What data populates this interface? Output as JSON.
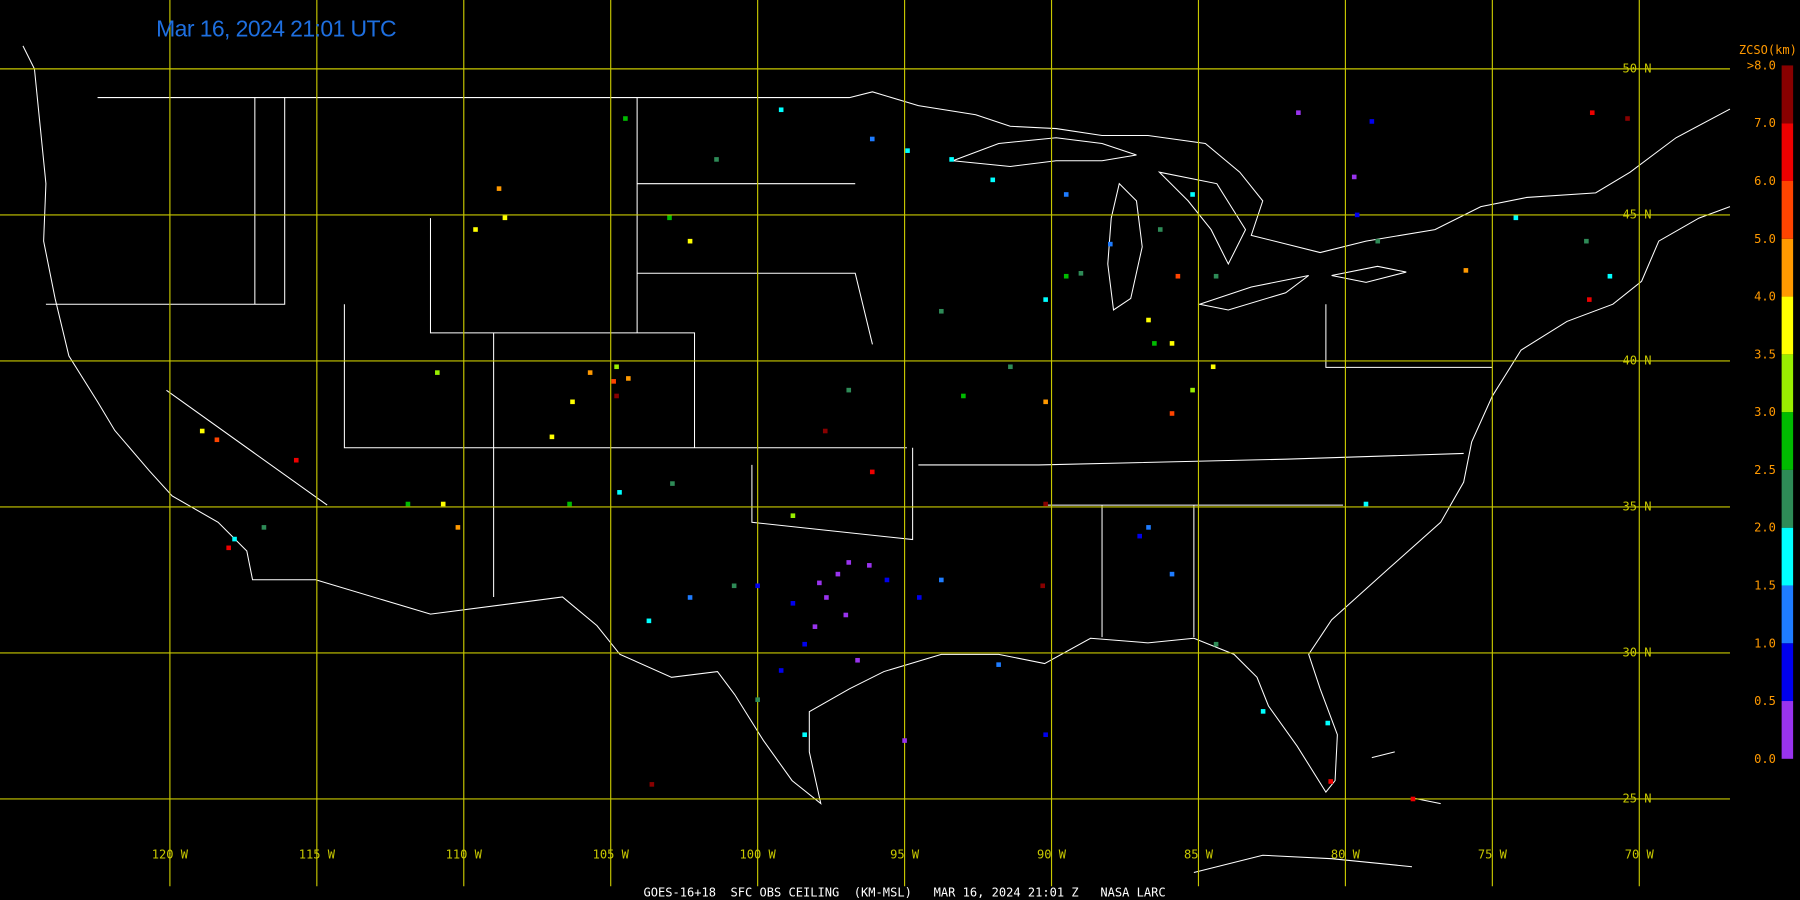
{
  "title": "Mar 16, 2024 21:01 UTC",
  "caption": "GOES-16+18  SFC OBS CEILING  (KM-MSL)   MAR 16, 2024 21:01 Z   NASA LARC",
  "grid_color": "#c8c800",
  "lat_ticks": [
    {
      "value": 50,
      "label": "50 N"
    },
    {
      "value": 45,
      "label": "45 N"
    },
    {
      "value": 40,
      "label": "40 N"
    },
    {
      "value": 35,
      "label": "35 N"
    },
    {
      "value": 30,
      "label": "30 N"
    },
    {
      "value": 25,
      "label": "25 N"
    }
  ],
  "lon_ticks": [
    {
      "value": -120,
      "label": "120 W"
    },
    {
      "value": -115,
      "label": "115 W"
    },
    {
      "value": -110,
      "label": "110 W"
    },
    {
      "value": -105,
      "label": "105 W"
    },
    {
      "value": -100,
      "label": "100 W"
    },
    {
      "value": -95,
      "label": "95 W"
    },
    {
      "value": -90,
      "label": "90 W"
    },
    {
      "value": -85,
      "label": "85 W"
    },
    {
      "value": -80,
      "label": "80 W"
    },
    {
      "value": -75,
      "label": "75 W"
    },
    {
      "value": -70,
      "label": "70 W"
    }
  ],
  "colorbar": {
    "title": "ZCSO(km)",
    "ticks": [
      {
        "value": 0,
        "label": "0.0"
      },
      {
        "value": 0.5,
        "label": "0.5"
      },
      {
        "value": 1,
        "label": "1.0"
      },
      {
        "value": 1.5,
        "label": "1.5"
      },
      {
        "value": 2,
        "label": "2.0"
      },
      {
        "value": 2.5,
        "label": "2.5"
      },
      {
        "value": 3,
        "label": "3.0"
      },
      {
        "value": 3.5,
        "label": "3.5"
      },
      {
        "value": 4,
        "label": "4.0"
      },
      {
        "value": 5,
        "label": "5.0"
      },
      {
        "value": 6,
        "label": "6.0"
      },
      {
        "value": 7,
        "label": "7.0"
      },
      {
        "value": 8,
        "label": ">8.0"
      }
    ],
    "colors": [
      "#9933ee",
      "#0000ee",
      "#1e7cff",
      "#00ffff",
      "#2e8b57",
      "#00bb00",
      "#99ee00",
      "#ffff00",
      "#ff9900",
      "#ff4400",
      "#ee0000",
      "#880000"
    ]
  },
  "observations": [
    [
      -97.27,
      32.7,
      0.3
    ],
    [
      -97.66,
      31.9,
      0.3
    ],
    [
      -96.9,
      33.1,
      0.3
    ],
    [
      -98.05,
      30.9,
      0.3
    ],
    [
      -96.6,
      29.75,
      0.3
    ],
    [
      -97.9,
      32.4,
      0.3
    ],
    [
      -96.2,
      33.0,
      0.3
    ],
    [
      -97.0,
      31.3,
      0.3
    ],
    [
      -98.8,
      31.7,
      0.8
    ],
    [
      -100.0,
      32.3,
      0.8
    ],
    [
      -98.4,
      30.3,
      0.8
    ],
    [
      -94.5,
      31.9,
      0.8
    ],
    [
      -99.2,
      29.4,
      0.8
    ],
    [
      -87.0,
      34.0,
      0.8
    ],
    [
      -95.6,
      32.5,
      0.8
    ],
    [
      -102.3,
      31.9,
      1.2
    ],
    [
      -93.75,
      32.5,
      1.2
    ],
    [
      -86.7,
      34.3,
      1.2
    ],
    [
      -85.9,
      32.7,
      1.2
    ],
    [
      -89.5,
      45.7,
      1.2
    ],
    [
      -96.1,
      47.6,
      1.2
    ],
    [
      -91.8,
      29.6,
      1.2
    ],
    [
      -88.0,
      44.0,
      1.2
    ],
    [
      -103.7,
      31.1,
      1.7
    ],
    [
      -98.4,
      27.2,
      1.7
    ],
    [
      -93.4,
      46.9,
      1.7
    ],
    [
      -94.9,
      47.2,
      1.7
    ],
    [
      -99.2,
      48.6,
      1.7
    ],
    [
      -90.2,
      42.1,
      1.7
    ],
    [
      -85.2,
      45.7,
      1.7
    ],
    [
      -79.3,
      35.1,
      1.7
    ],
    [
      -71.0,
      42.9,
      1.7
    ],
    [
      -74.2,
      44.9,
      1.7
    ],
    [
      -117.8,
      33.9,
      1.7
    ],
    [
      -80.6,
      27.6,
      1.7
    ],
    [
      -82.8,
      28.0,
      1.7
    ],
    [
      -104.7,
      35.5,
      1.7
    ],
    [
      -92.0,
      46.2,
      1.7
    ],
    [
      -86.3,
      44.5,
      2.2
    ],
    [
      -84.4,
      42.9,
      2.2
    ],
    [
      -93.75,
      41.7,
      2.2
    ],
    [
      -91.4,
      39.8,
      2.2
    ],
    [
      -96.9,
      39.0,
      2.2
    ],
    [
      -101.4,
      46.9,
      2.2
    ],
    [
      -78.9,
      44.1,
      2.2
    ],
    [
      -71.8,
      44.1,
      2.2
    ],
    [
      -84.4,
      30.3,
      2.2
    ],
    [
      -102.9,
      35.8,
      2.2
    ],
    [
      -100.8,
      32.3,
      2.2
    ],
    [
      -100.0,
      28.4,
      2.2
    ],
    [
      -116.8,
      34.3,
      2.2
    ],
    [
      -89.0,
      43.0,
      2.2
    ],
    [
      -86.5,
      40.6,
      2.7
    ],
    [
      -89.5,
      42.9,
      2.7
    ],
    [
      -93.0,
      38.8,
      2.7
    ],
    [
      -111.9,
      35.1,
      2.7
    ],
    [
      -106.4,
      35.1,
      2.7
    ],
    [
      -104.5,
      48.3,
      2.7
    ],
    [
      -103.0,
      44.9,
      2.7
    ],
    [
      -98.8,
      34.7,
      3.2
    ],
    [
      -85.2,
      39.0,
      3.2
    ],
    [
      -104.8,
      39.8,
      3.2
    ],
    [
      -110.9,
      39.6,
      3.2
    ],
    [
      -109.6,
      44.5,
      3.7
    ],
    [
      -108.6,
      44.9,
      3.7
    ],
    [
      -106.3,
      38.6,
      3.7
    ],
    [
      -107.0,
      37.4,
      3.7
    ],
    [
      -86.7,
      41.4,
      3.7
    ],
    [
      -85.9,
      40.6,
      3.7
    ],
    [
      -84.5,
      39.8,
      3.7
    ],
    [
      -118.9,
      37.6,
      3.7
    ],
    [
      -102.3,
      44.1,
      3.7
    ],
    [
      -110.7,
      35.1,
      3.7
    ],
    [
      -105.7,
      39.6,
      4.5
    ],
    [
      -104.4,
      39.4,
      4.5
    ],
    [
      -110.2,
      34.3,
      4.5
    ],
    [
      -108.8,
      45.9,
      4.5
    ],
    [
      -75.9,
      43.1,
      4.5
    ],
    [
      -90.2,
      38.6,
      4.5
    ],
    [
      -104.9,
      39.3,
      5.5
    ],
    [
      -118.4,
      37.3,
      5.5
    ],
    [
      -85.9,
      38.2,
      5.5
    ],
    [
      -85.7,
      42.9,
      5.5
    ],
    [
      -118.0,
      33.6,
      6.5
    ],
    [
      -96.1,
      36.2,
      6.5
    ],
    [
      -71.7,
      42.1,
      6.5
    ],
    [
      -80.5,
      25.6,
      6.5
    ],
    [
      -77.7,
      25.0,
      6.5
    ],
    [
      -115.7,
      36.6,
      6.5
    ],
    [
      -71.6,
      48.5,
      6.5
    ],
    [
      -103.6,
      25.5,
      7.5
    ],
    [
      -97.7,
      37.6,
      7.5
    ],
    [
      -90.3,
      32.3,
      7.5
    ],
    [
      -70.4,
      48.3,
      7.5
    ],
    [
      -104.8,
      38.8,
      7.5
    ],
    [
      -90.2,
      35.1,
      7.5
    ],
    [
      -81.6,
      48.5,
      0.3
    ],
    [
      -79.7,
      46.3,
      0.3
    ],
    [
      -95.0,
      27.0,
      0.3
    ],
    [
      -79.1,
      48.2,
      0.8
    ],
    [
      -79.6,
      45.0,
      0.8
    ],
    [
      -90.2,
      27.2,
      0.8
    ]
  ]
}
